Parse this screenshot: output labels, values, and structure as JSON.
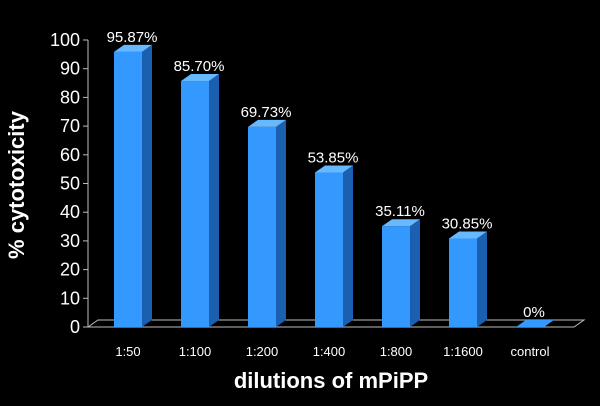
{
  "chart_data": {
    "type": "bar",
    "title": "",
    "xlabel": "dilutions of mPiPP",
    "ylabel": "% cytotoxicity",
    "categories": [
      "1:50",
      "1:100",
      "1:200",
      "1:400",
      "1:800",
      "1:1600",
      "control"
    ],
    "values": [
      95.87,
      85.7,
      69.73,
      53.85,
      35.11,
      30.85,
      0
    ],
    "data_labels": [
      "95.87%",
      "85.70%",
      "69.73%",
      "53.85%",
      "35.11%",
      "30.85%",
      "0%"
    ],
    "ylim": [
      0,
      100
    ],
    "yticks": [
      "0",
      "10",
      "20",
      "30",
      "40",
      "50",
      "60",
      "70",
      "80",
      "90",
      "100"
    ],
    "grid": false,
    "legend": "none",
    "style_3d": true,
    "colors": {
      "background": "#000000",
      "bar_front": "#3399ff",
      "bar_side": "#1a5fb0",
      "bar_top": "#66b8ff",
      "floor": "#000000",
      "axis": "#bbbbbb",
      "text": "#ffffff"
    }
  }
}
